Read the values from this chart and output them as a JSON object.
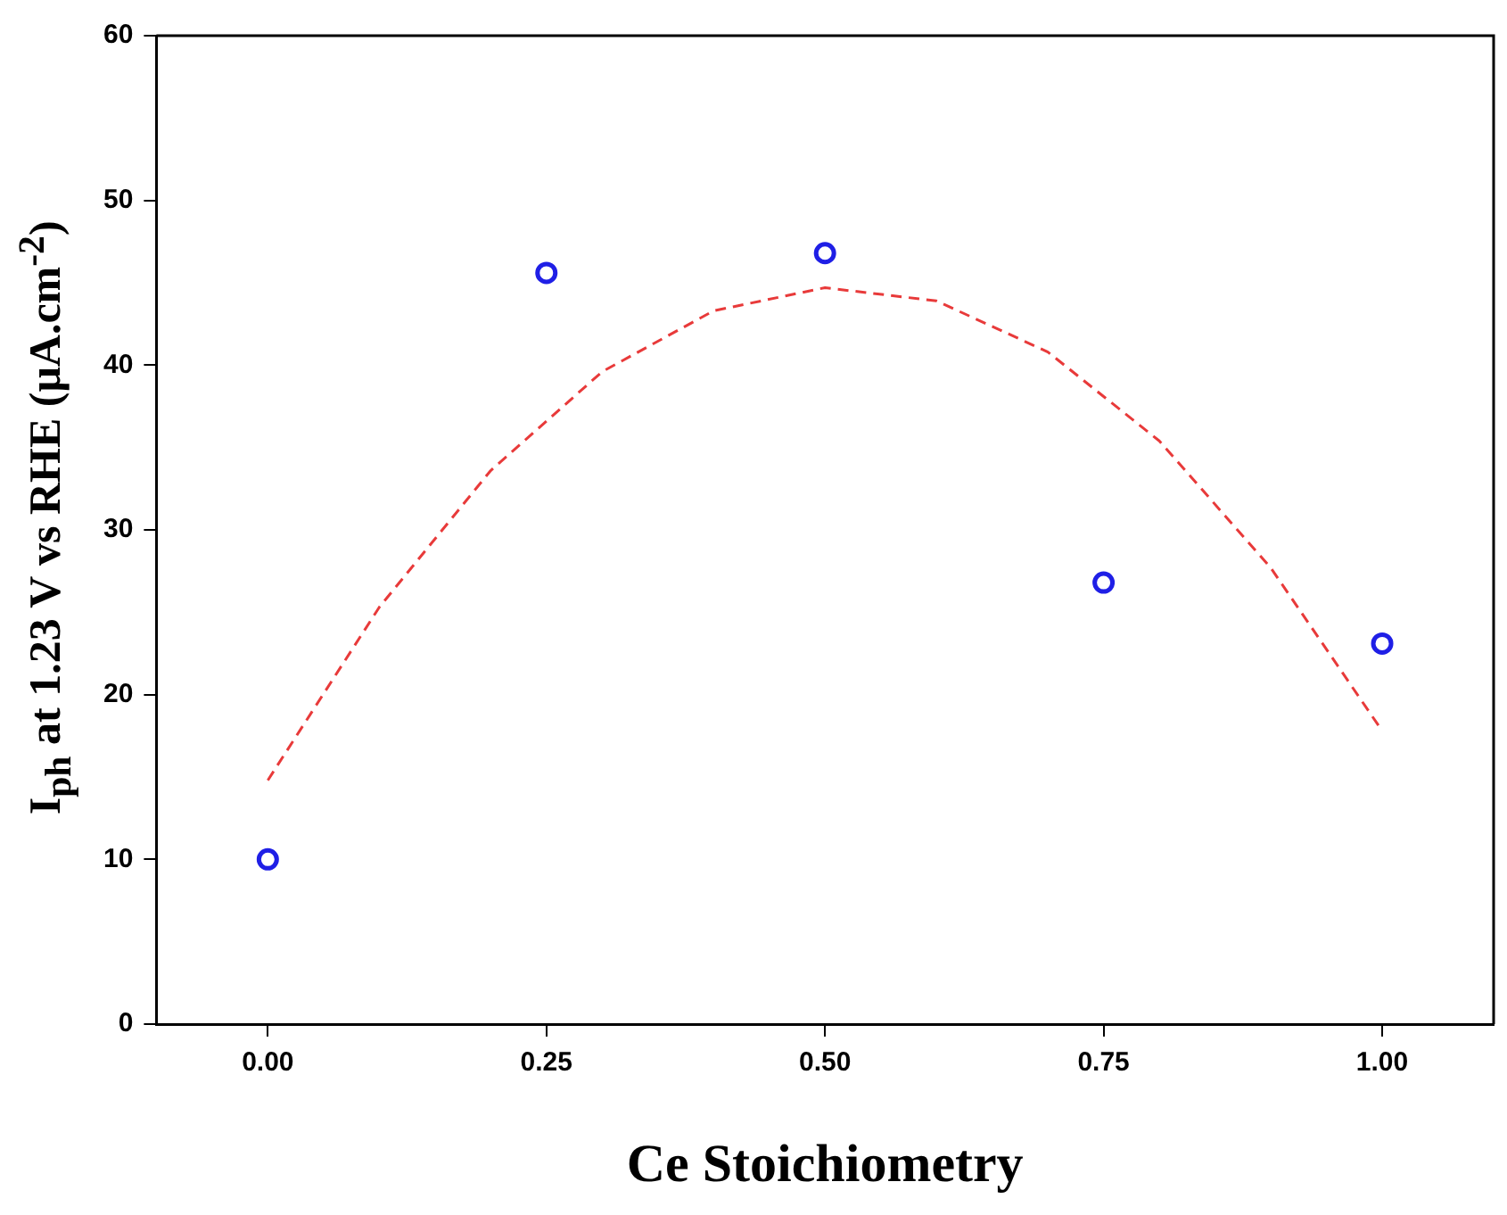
{
  "chart_data": {
    "type": "scatter",
    "xlabel": "Ce Stoichiometry",
    "ylabel": "I$_{ph}$ at 1.23 V vs RHE (μA.cm$^{-2}$)",
    "xlim": [
      -0.1,
      1.1
    ],
    "xticks": [
      {
        "value": 0,
        "label": "0.00"
      },
      {
        "value": 0.25,
        "label": "0.25"
      },
      {
        "value": 0.5,
        "label": "0.50"
      },
      {
        "value": 0.75,
        "label": "0.75"
      },
      {
        "value": 1,
        "label": "1.00"
      }
    ],
    "ylim": [
      0,
      60
    ],
    "yticks": [
      0,
      10,
      20,
      30,
      40,
      50,
      60
    ],
    "grid": false,
    "legend": false,
    "series": [
      {
        "type": "line",
        "color": "#e83a3a",
        "marker": "none",
        "line_style": "dashed",
        "x": [
          0,
          0.1,
          0.2,
          0.3,
          0.4,
          0.5,
          0.6,
          0.7,
          0.8,
          0.9,
          1.0
        ],
        "values": [
          14.8,
          25.3,
          33.6,
          39.6,
          43.3,
          44.7,
          43.9,
          40.8,
          35.4,
          27.7,
          17.8
        ]
      },
      {
        "color": "#1f1fe6",
        "marker": "circle",
        "x": [
          0,
          0.25,
          0.5,
          0.75,
          1.0
        ],
        "values": [
          10,
          45.6,
          46.8,
          26.8,
          23.1
        ]
      }
    ]
  }
}
